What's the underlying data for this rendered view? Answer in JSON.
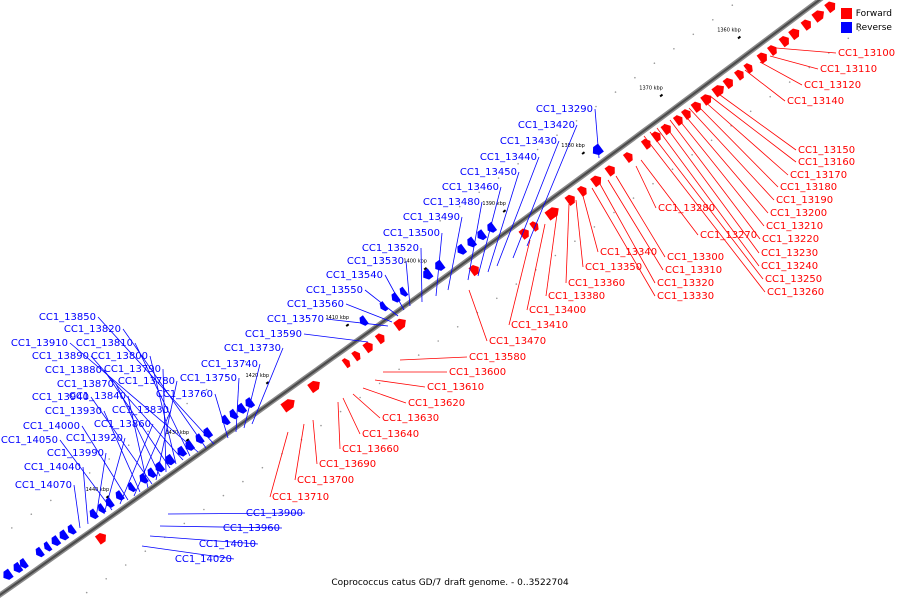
{
  "legend": {
    "forward_label": "Forward",
    "reverse_label": "Reverse",
    "forward_color": "#ff0000",
    "reverse_color": "#0000ff"
  },
  "caption": "Coprococcus catus GD/7 draft genome. - 0..3522704",
  "ticks": [
    "1360 kbp",
    "1370 kbp",
    "1380 kbp",
    "1390 kbp",
    "1400 kbp",
    "1410 kbp",
    "1420 kbp",
    "1430 kbp",
    "1440 kbp"
  ],
  "forward_labels": [
    "CC1_13100",
    "CC1_13110",
    "CC1_13120",
    "CC1_13140",
    "CC1_13150",
    "CC1_13160",
    "CC1_13170",
    "CC1_13180",
    "CC1_13190",
    "CC1_13200",
    "CC1_13210",
    "CC1_13220",
    "CC1_13230",
    "CC1_13240",
    "CC1_13250",
    "CC1_13260",
    "CC1_13280",
    "CC1_13270",
    "CC1_13300",
    "CC1_13310",
    "CC1_13320",
    "CC1_13330",
    "CC1_13340",
    "CC1_13350",
    "CC1_13360",
    "CC1_13380",
    "CC1_13400",
    "CC1_13410",
    "CC1_13470",
    "CC1_13580",
    "CC1_13600",
    "CC1_13610",
    "CC1_13620",
    "CC1_13630",
    "CC1_13640",
    "CC1_13660",
    "CC1_13690",
    "CC1_13700",
    "CC1_13710"
  ],
  "reverse_labels": [
    "CC1_13290",
    "CC1_13420",
    "CC1_13430",
    "CC1_13440",
    "CC1_13450",
    "CC1_13460",
    "CC1_13480",
    "CC1_13490",
    "CC1_13500",
    "CC1_13520",
    "CC1_13530",
    "CC1_13540",
    "CC1_13550",
    "CC1_13560",
    "CC1_13570",
    "CC1_13590",
    "CC1_13730",
    "CC1_13740",
    "CC1_13750",
    "CC1_13760",
    "CC1_13850",
    "CC1_13820",
    "CC1_13910",
    "CC1_13810",
    "CC1_13890",
    "CC1_13800",
    "CC1_13880",
    "CC1_13790",
    "CC1_13870",
    "CC1_13780",
    "CC1_13940",
    "CC1_13840",
    "CC1_13930",
    "CC1_13830",
    "CC1_14000",
    "CC1_13860",
    "CC1_14050",
    "CC1_13920",
    "CC1_13990",
    "CC1_14040",
    "CC1_14070",
    "CC1_13900",
    "CC1_13960",
    "CC1_14010",
    "CC1_14020"
  ]
}
